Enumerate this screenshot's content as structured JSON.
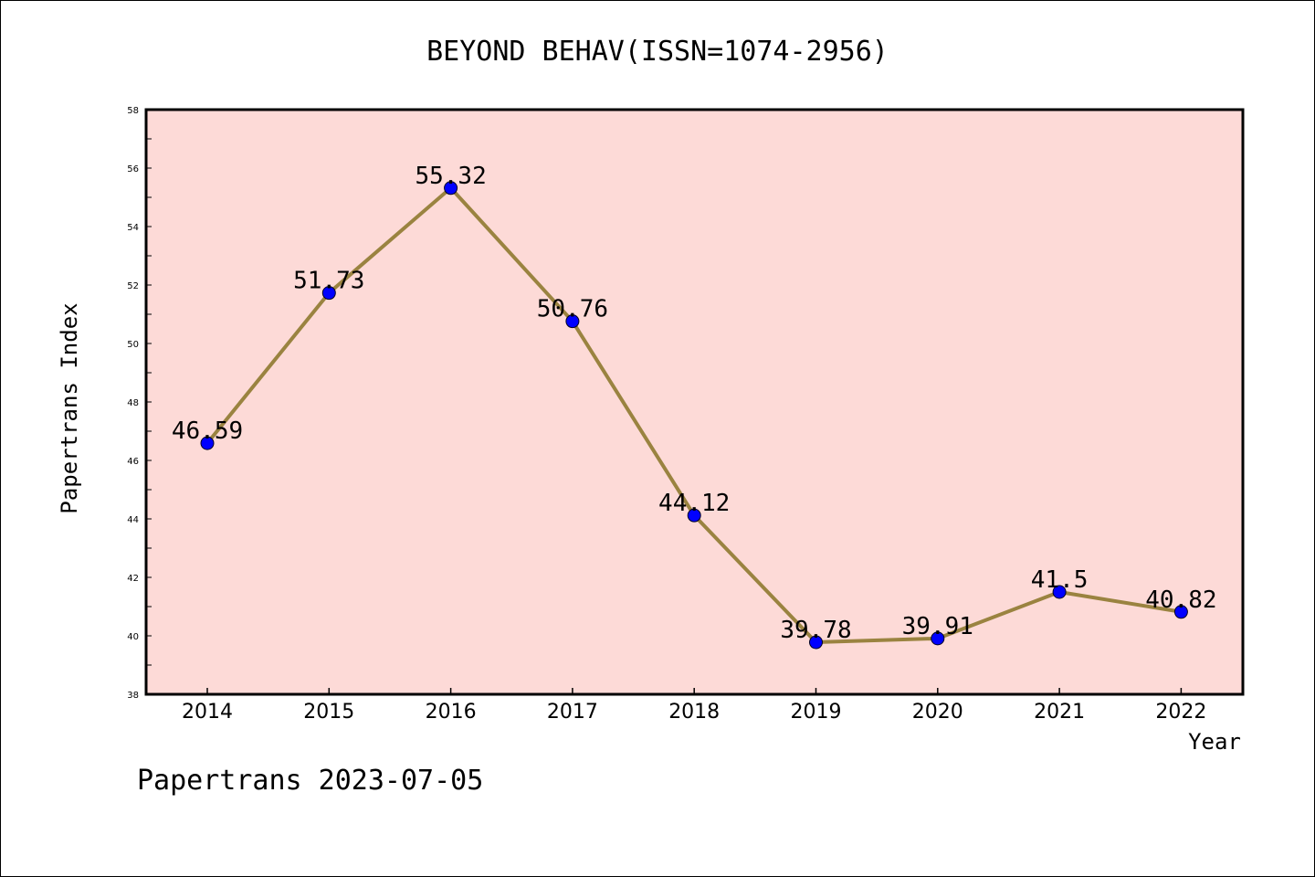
{
  "chart_data": {
    "type": "line",
    "title": "BEYOND BEHAV(ISSN=1074-2956)",
    "xlabel": "Year",
    "ylabel": "Papertrans Index",
    "categories": [
      "2014",
      "2015",
      "2016",
      "2017",
      "2018",
      "2019",
      "2020",
      "2021",
      "2022"
    ],
    "series": [
      {
        "values": [
          46.59,
          51.73,
          55.32,
          50.76,
          44.12,
          39.78,
          39.91,
          41.5,
          40.82
        ]
      }
    ],
    "data_labels": [
      "46.59",
      "51.73",
      "55.32",
      "50.76",
      "44.12",
      "39.78",
      "39.91",
      "41.5",
      "40.82"
    ],
    "ylim": [
      38,
      58
    ],
    "yticks": [
      "38",
      "40",
      "42",
      "44",
      "46",
      "48",
      "50",
      "52",
      "54",
      "56",
      "58"
    ],
    "grid": false,
    "legend": "none",
    "colors": {
      "plot_background": "#fddad7",
      "line": "#9a8340",
      "marker": "#0000ff"
    }
  },
  "footer": "Papertrans 2023-07-05"
}
